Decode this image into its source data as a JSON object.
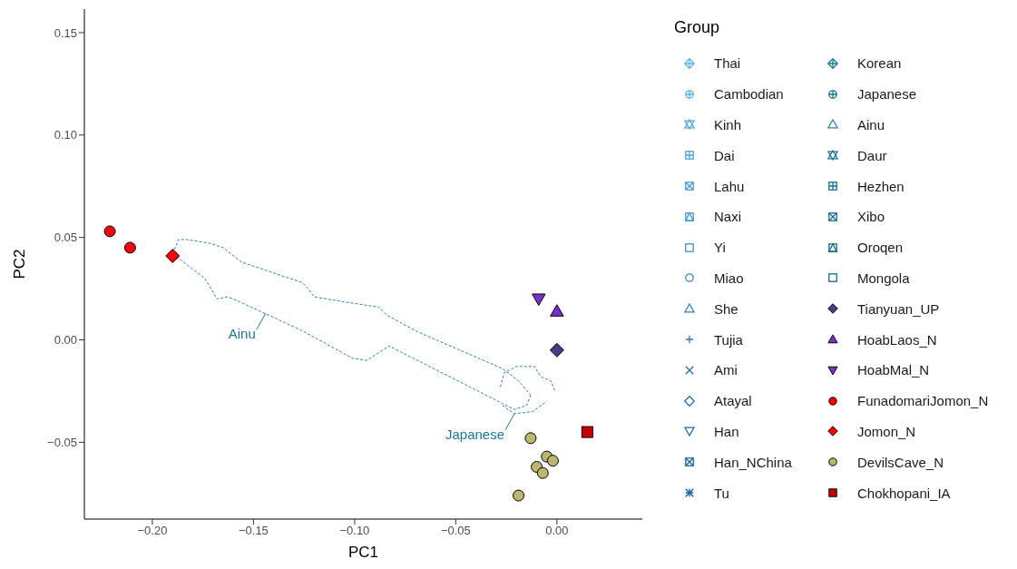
{
  "chart_data": {
    "type": "scatter",
    "xlabel": "PC1",
    "ylabel": "PC2",
    "legend_title": "Group",
    "legend": "right",
    "xlim": [
      -0.2336,
      0.0422
    ],
    "ylim": [
      -0.0875,
      0.1615
    ],
    "xticks": [
      {
        "value": -0.2,
        "label": "−0.20"
      },
      {
        "value": -0.15,
        "label": "−0.15"
      },
      {
        "value": -0.1,
        "label": "−0.10"
      },
      {
        "value": -0.05,
        "label": "−0.05"
      },
      {
        "value": 0,
        "label": "0.00"
      }
    ],
    "yticks": [
      {
        "value": -0.05,
        "label": "−0.05"
      },
      {
        "value": 0,
        "label": "0.00"
      },
      {
        "value": 0.05,
        "label": "0.05"
      },
      {
        "value": 0.1,
        "label": "0.10"
      },
      {
        "value": 0.15,
        "label": "0.15"
      }
    ],
    "series": [
      {
        "name": "Thai",
        "color": "#5fb2f2",
        "marker": "diamond-plus"
      },
      {
        "name": "Cambodian",
        "color": "#5aacec",
        "marker": "circle-plus"
      },
      {
        "name": "Kinh",
        "color": "#55a6e6",
        "marker": "hexagram"
      },
      {
        "name": "Dai",
        "color": "#4ea0df",
        "marker": "square-plus"
      },
      {
        "name": "Lahu",
        "color": "#489ad8",
        "marker": "square-cross"
      },
      {
        "name": "Naxi",
        "color": "#4294d1",
        "marker": "square-triangle"
      },
      {
        "name": "Yi",
        "color": "#3c8eca",
        "marker": "square"
      },
      {
        "name": "Miao",
        "color": "#3688c3",
        "marker": "circle"
      },
      {
        "name": "She",
        "color": "#3082bc",
        "marker": "triangle"
      },
      {
        "name": "Tujia",
        "color": "#2b7cb5",
        "marker": "plus"
      },
      {
        "name": "Ami",
        "color": "#2676ae",
        "marker": "cross"
      },
      {
        "name": "Atayal",
        "color": "#2270a7",
        "marker": "diamond"
      },
      {
        "name": "Han",
        "color": "#1e6aa0",
        "marker": "triangle-down"
      },
      {
        "name": "Han_NChina",
        "color": "#1a6499",
        "marker": "square-cross"
      },
      {
        "name": "Tu",
        "color": "#175e92",
        "marker": "star"
      },
      {
        "name": "Korean",
        "color": "#1a7896",
        "marker": "diamond-plus"
      },
      {
        "name": "Japanese",
        "color": "#1a7694",
        "marker": "circle-plus"
      },
      {
        "name": "Ainu",
        "color": "#2a86a8",
        "marker": "triangle"
      },
      {
        "name": "Daur",
        "color": "#187290",
        "marker": "hexagram"
      },
      {
        "name": "Hezhen",
        "color": "#17708e",
        "marker": "square-plus"
      },
      {
        "name": "Xibo",
        "color": "#166e8c",
        "marker": "square-cross"
      },
      {
        "name": "Oroqen",
        "color": "#156c8a",
        "marker": "square-triangle"
      },
      {
        "name": "Mongola",
        "color": "#146a88",
        "marker": "square"
      },
      {
        "name": "Tianyuan_UP",
        "color": "#483d8b",
        "marker": "diamond",
        "x": [
          0.0
        ],
        "values": [
          -0.005
        ]
      },
      {
        "name": "HoabLaos_N",
        "color": "#7b2fd0",
        "marker": "triangle",
        "x": [
          0.0
        ],
        "values": [
          0.014
        ]
      },
      {
        "name": "HoabMal_N",
        "color": "#7b2fd0",
        "marker": "triangle-down",
        "x": [
          -0.009
        ],
        "values": [
          0.02
        ]
      },
      {
        "name": "FunadomariJomon_N",
        "color": "#ff0000",
        "marker": "circle",
        "x": [
          -0.221,
          -0.211
        ],
        "values": [
          0.053,
          0.045
        ]
      },
      {
        "name": "Jomon_N",
        "color": "#ff0000",
        "marker": "diamond",
        "x": [
          -0.19
        ],
        "values": [
          0.041
        ]
      },
      {
        "name": "DevilsCave_N",
        "color": "#bdb76b",
        "marker": "circle",
        "x": [
          -0.013,
          -0.005,
          -0.002,
          -0.01,
          -0.007,
          -0.019
        ],
        "values": [
          -0.048,
          -0.057,
          -0.059,
          -0.062,
          -0.065,
          -0.076
        ]
      },
      {
        "name": "Chokhopani_IA",
        "color": "#cc0000",
        "marker": "square",
        "x": [
          0.015
        ],
        "values": [
          -0.045
        ]
      },
      {
        "type": "line",
        "color": "#2a86a8",
        "line_style": "dashed",
        "x": [
          -0.19,
          -0.187,
          -0.183,
          -0.177,
          -0.171,
          -0.165,
          -0.156,
          -0.144,
          -0.126,
          -0.123,
          -0.12,
          -0.108,
          -0.088,
          -0.084,
          -0.069,
          -0.027,
          -0.019,
          -0.013
        ],
        "values": [
          0.042,
          0.049,
          0.049,
          0.048,
          0.047,
          0.045,
          0.038,
          0.034,
          0.028,
          0.025,
          0.021,
          0.019,
          0.016,
          0.012,
          0.004,
          -0.014,
          -0.02,
          -0.027
        ]
      },
      {
        "type": "line",
        "color": "#2a86a8",
        "line_style": "dashed",
        "x": [
          -0.19,
          -0.174,
          -0.168,
          -0.163,
          -0.16,
          -0.127,
          -0.101,
          -0.094,
          -0.083,
          -0.027,
          -0.021,
          -0.015,
          -0.013
        ],
        "values": [
          0.042,
          0.03,
          0.02,
          0.021,
          0.02,
          0.005,
          -0.009,
          -0.01,
          -0.003,
          -0.031,
          -0.034,
          -0.032,
          -0.027
        ]
      },
      {
        "type": "line",
        "color": "#2a86a8",
        "line_style": "dashed",
        "x": [
          -0.028,
          -0.026,
          -0.02,
          -0.011,
          -0.008,
          -0.003,
          -0.001
        ],
        "values": [
          -0.023,
          -0.016,
          -0.013,
          -0.013,
          -0.018,
          -0.02,
          -0.025
        ]
      },
      {
        "type": "line",
        "color": "#2a86a8",
        "line_style": "dashed",
        "x": [
          -0.027,
          -0.021,
          -0.012,
          -0.005
        ],
        "values": [
          -0.032,
          -0.036,
          -0.035,
          -0.03
        ]
      }
    ],
    "annotations": [
      {
        "text": "Ainu",
        "x": -0.144,
        "y": 0.013
      },
      {
        "text": "Japanese",
        "x": -0.021,
        "y": -0.036
      }
    ]
  }
}
